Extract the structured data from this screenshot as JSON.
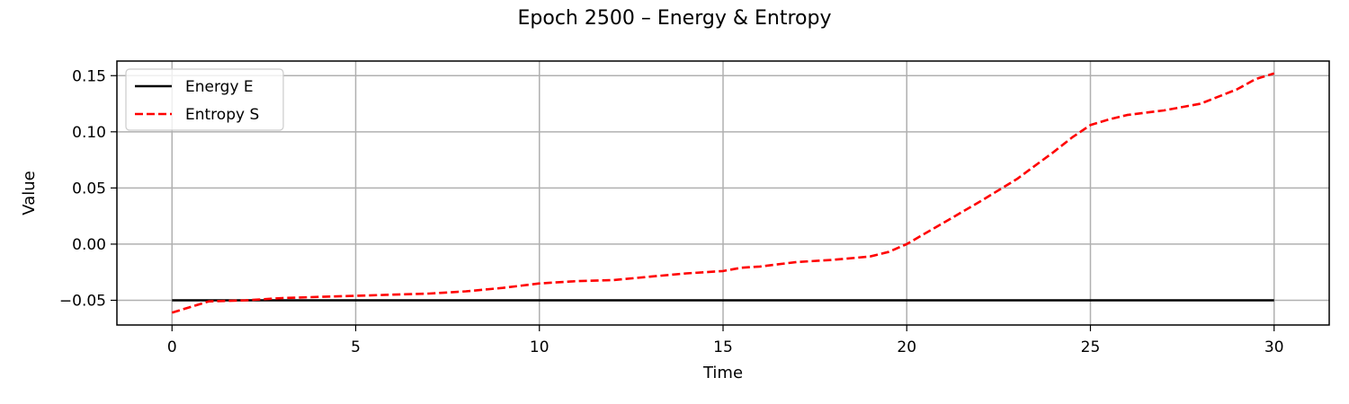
{
  "figure": {
    "title": "Epoch 2500 – Energy & Entropy"
  },
  "chart_data": {
    "type": "line",
    "title": "Epoch 2500 – Energy & Entropy",
    "xlabel": "Time",
    "ylabel": "Value",
    "xlim": [
      -1.5,
      31.5
    ],
    "ylim": [
      -0.072,
      0.163
    ],
    "xticks": [
      0,
      5,
      10,
      15,
      20,
      25,
      30
    ],
    "xtick_labels": [
      "0",
      "5",
      "10",
      "15",
      "20",
      "25",
      "30"
    ],
    "yticks": [
      -0.05,
      0.0,
      0.05,
      0.1,
      0.15
    ],
    "ytick_labels": [
      "−0.05",
      "0.00",
      "0.05",
      "0.10",
      "0.15"
    ],
    "grid": true,
    "legend": {
      "position": "upper left"
    },
    "series": [
      {
        "name": "Energy E",
        "color": "#000000",
        "style": "solid",
        "x": [
          0,
          30
        ],
        "y": [
          -0.05,
          -0.05
        ]
      },
      {
        "name": "Entropy S",
        "color": "#ff0000",
        "style": "dashed",
        "x": [
          0,
          0.5,
          1,
          2,
          3,
          4,
          5,
          6,
          7,
          8,
          9,
          10,
          11,
          12,
          13,
          14,
          15,
          15.5,
          16,
          17,
          18,
          19,
          19.5,
          20,
          21,
          22,
          23,
          24,
          24.5,
          25,
          25.5,
          26,
          27,
          28,
          29,
          29.5,
          30
        ],
        "y": [
          -0.061,
          -0.056,
          -0.051,
          -0.05,
          -0.048,
          -0.047,
          -0.046,
          -0.045,
          -0.044,
          -0.042,
          -0.039,
          -0.035,
          -0.033,
          -0.032,
          -0.029,
          -0.026,
          -0.024,
          -0.021,
          -0.02,
          -0.016,
          -0.014,
          -0.011,
          -0.007,
          0.0,
          0.019,
          0.038,
          0.058,
          0.082,
          0.095,
          0.106,
          0.111,
          0.115,
          0.119,
          0.125,
          0.138,
          0.147,
          0.152
        ]
      }
    ]
  }
}
